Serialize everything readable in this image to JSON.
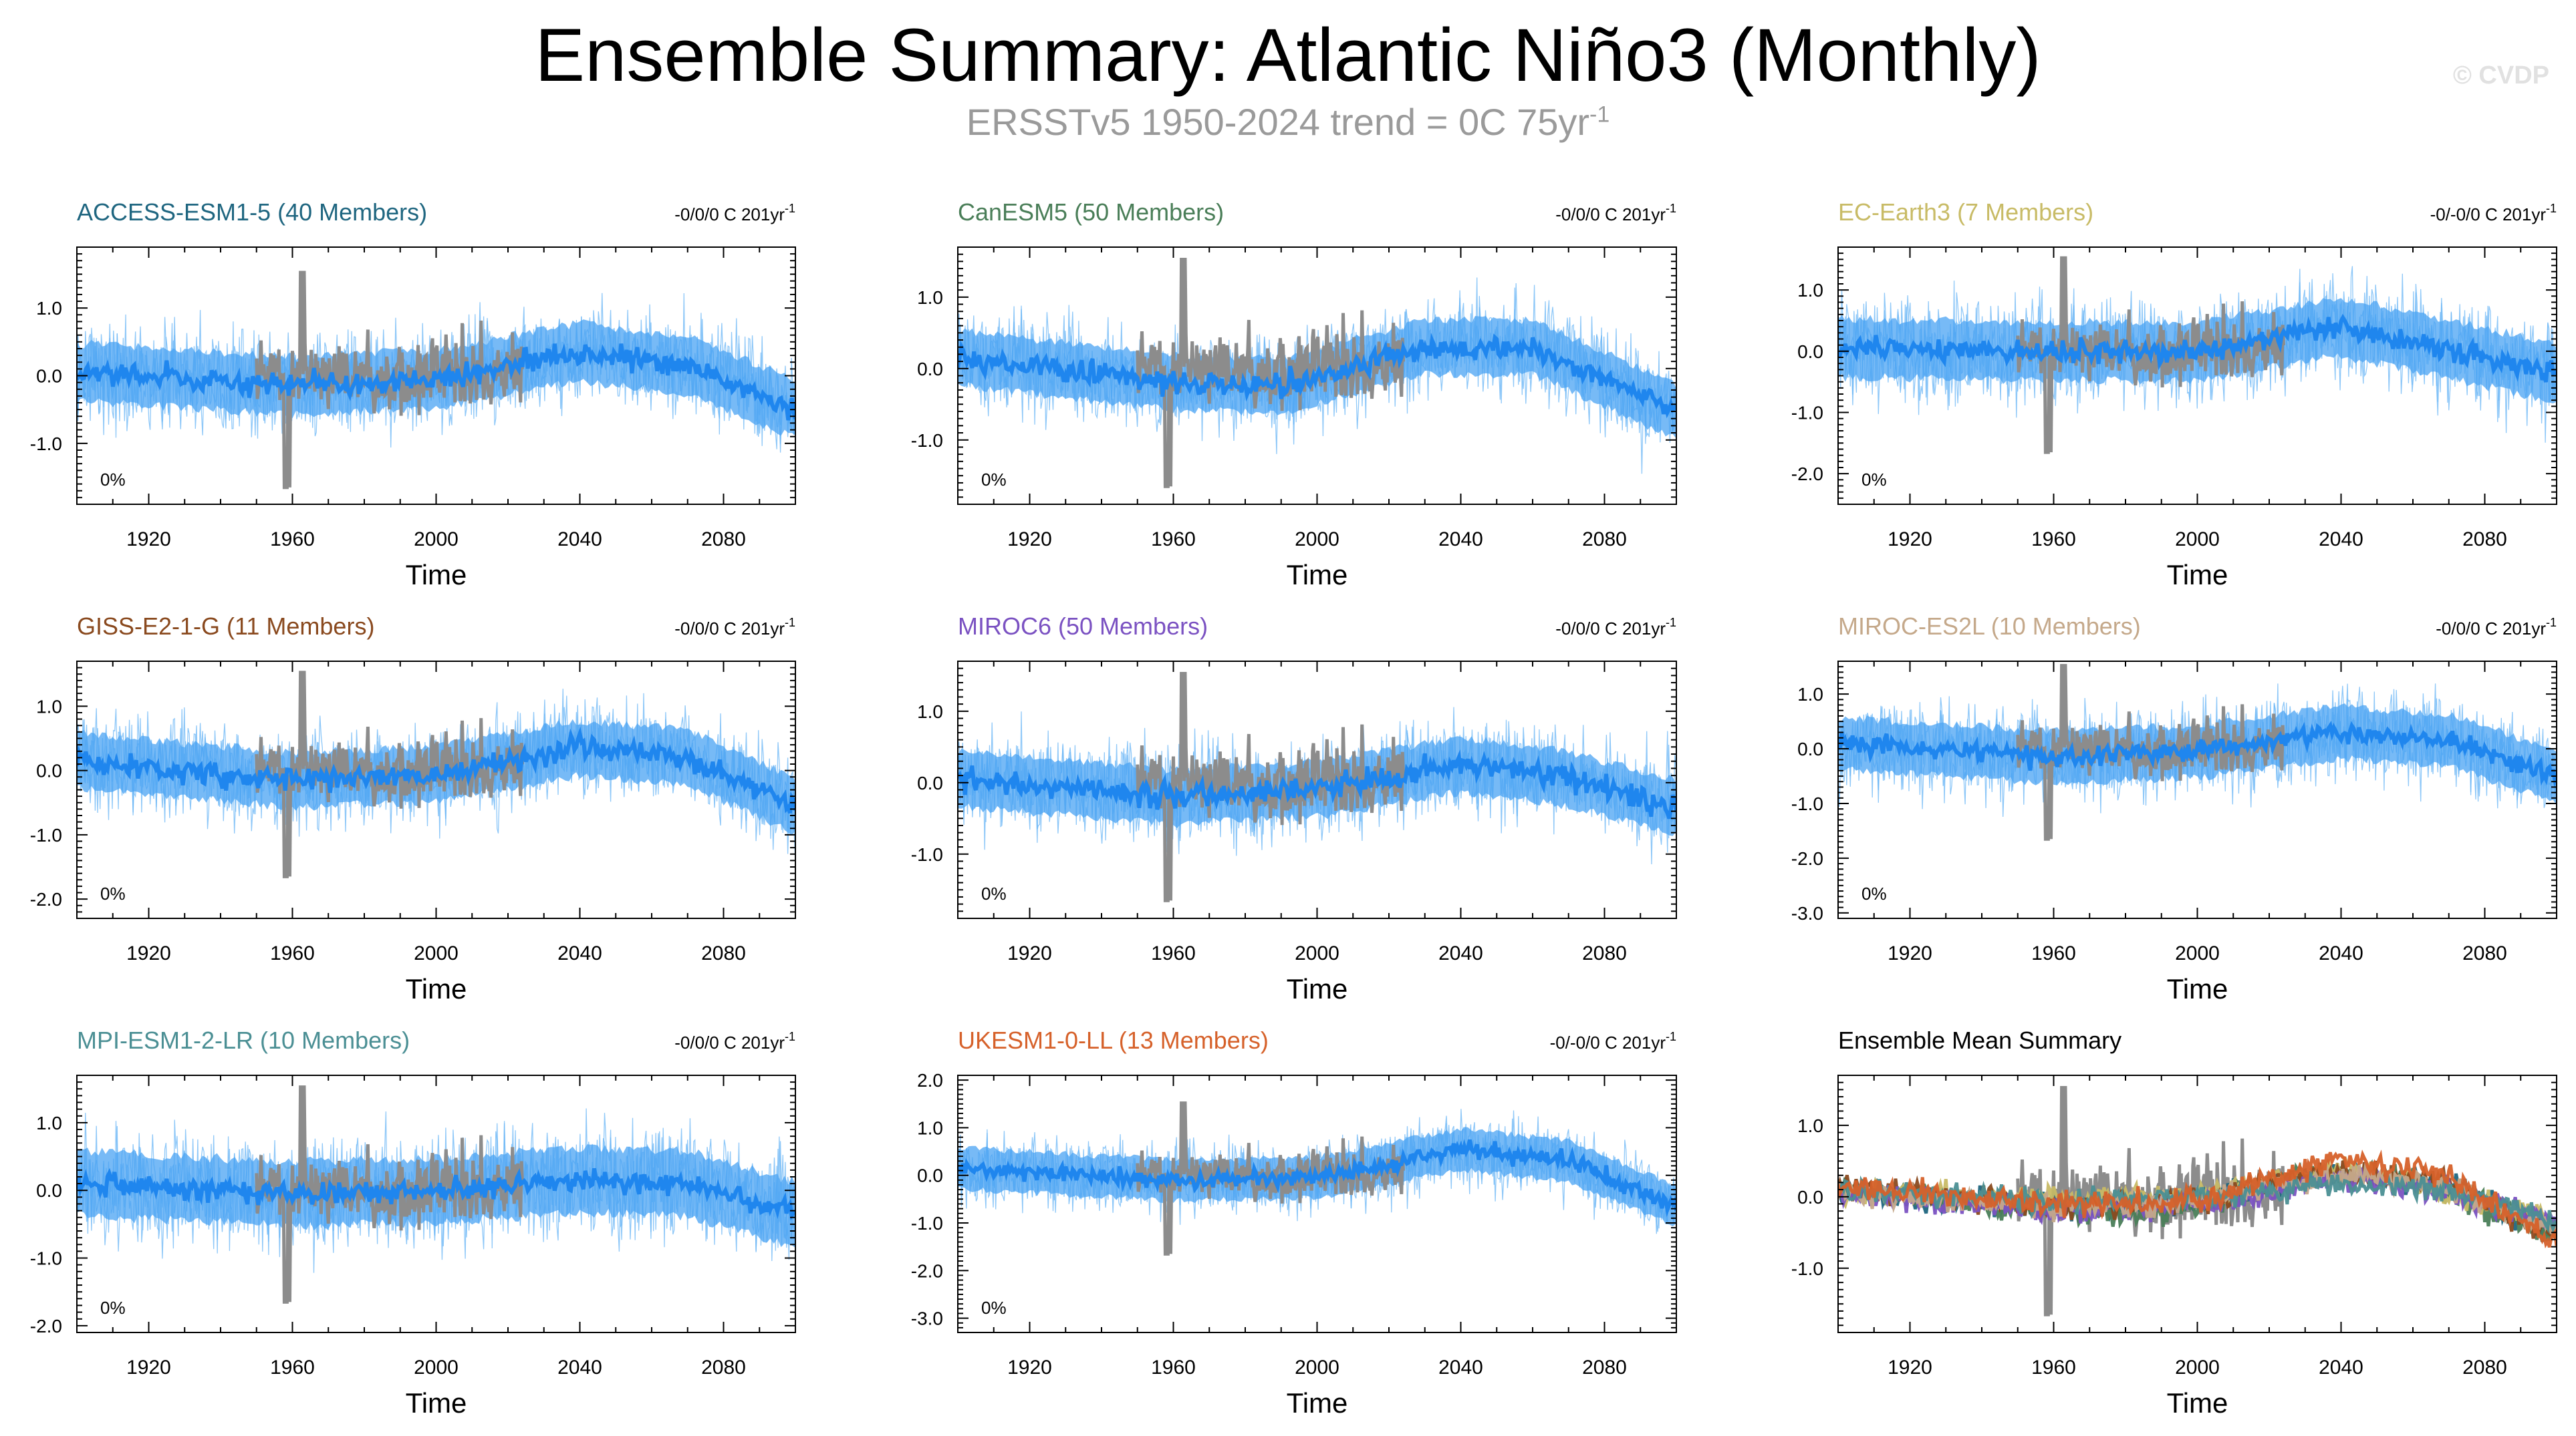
{
  "header": {
    "title": "Ensemble Summary: Atlantic Niño3 (Monthly)",
    "subtitle_main": "ERSSTv5 1950-2024 trend = 0C 75yr",
    "subtitle_sup": "-1",
    "watermark": "© CVDP"
  },
  "colors": {
    "observations": "#8c8c8c",
    "ensemble_mean": "#1f86ee",
    "members": "#69b6f6",
    "spread": "#4aa3f3"
  },
  "chart_data": [
    {
      "type": "line",
      "title": "ACCESS-ESM1-5 (40 Members)",
      "title_color": "#1f6680",
      "trend_text": "-0/0/0 C 201yr",
      "trend_sup": "-1",
      "percent_label": "0%",
      "xlabel": "Time",
      "xlim": [
        1900,
        2100
      ],
      "xticks": [
        1920,
        1960,
        2000,
        2040,
        2080
      ],
      "ylim": [
        -1.9,
        1.9
      ],
      "yticks": [
        1.0,
        0.0,
        -1.0
      ],
      "ytick_labels": [
        "1.0",
        "0.0",
        "-1.0"
      ],
      "ens_mean_shape": [
        [
          1900,
          0.05
        ],
        [
          1960,
          -0.15
        ],
        [
          2000,
          -0.05
        ],
        [
          2040,
          0.35
        ],
        [
          2070,
          0.15
        ],
        [
          2100,
          -0.5
        ]
      ],
      "spread": 0.45,
      "obs_range": [
        1950,
        2024
      ]
    },
    {
      "type": "line",
      "title": "CanESM5 (50 Members)",
      "title_color": "#4a7e58",
      "trend_text": "-0/0/0 C 201yr",
      "trend_sup": "-1",
      "percent_label": "0%",
      "xlabel": "Time",
      "xlim": [
        1900,
        2100
      ],
      "xticks": [
        1920,
        1960,
        2000,
        2040,
        2080
      ],
      "ylim": [
        -1.9,
        1.7
      ],
      "yticks": [
        1.0,
        0.0,
        -1.0
      ],
      "ytick_labels": [
        "1.0",
        "0.0",
        "-1.0"
      ],
      "ens_mean_shape": [
        [
          1900,
          0.15
        ],
        [
          1960,
          -0.2
        ],
        [
          1990,
          -0.25
        ],
        [
          2030,
          0.3
        ],
        [
          2060,
          0.3
        ],
        [
          2100,
          -0.6
        ]
      ],
      "spread": 0.4,
      "obs_range": [
        1950,
        2024
      ]
    },
    {
      "type": "line",
      "title": "EC-Earth3 (7 Members)",
      "title_color": "#c8bb66",
      "trend_text": "-0/-0/0 C 201yr",
      "trend_sup": "-1",
      "percent_label": "0%",
      "xlabel": "Time",
      "xlim": [
        1900,
        2100
      ],
      "xticks": [
        1920,
        1960,
        2000,
        2040,
        2080
      ],
      "ylim": [
        -2.5,
        1.7
      ],
      "yticks": [
        1.0,
        0.0,
        -1.0,
        -2.0
      ],
      "ytick_labels": [
        "1.0",
        "0.0",
        "-1.0",
        "-2.0"
      ],
      "ens_mean_shape": [
        [
          1900,
          0.05
        ],
        [
          1960,
          0.0
        ],
        [
          2000,
          0.0
        ],
        [
          2040,
          0.4
        ],
        [
          2100,
          -0.35
        ]
      ],
      "spread": 0.5,
      "obs_range": [
        1950,
        2024
      ]
    },
    {
      "type": "line",
      "title": "GISS-E2-1-G (11 Members)",
      "title_color": "#8a4a1f",
      "trend_text": "-0/0/0 C 201yr",
      "trend_sup": "-1",
      "percent_label": "0%",
      "xlabel": "Time",
      "xlim": [
        1900,
        2100
      ],
      "xticks": [
        1920,
        1960,
        2000,
        2040,
        2080
      ],
      "ylim": [
        -2.3,
        1.7
      ],
      "yticks": [
        1.0,
        0.0,
        -1.0,
        -2.0
      ],
      "ytick_labels": [
        "1.0",
        "0.0",
        "-1.0",
        "-2.0"
      ],
      "ens_mean_shape": [
        [
          1900,
          0.15
        ],
        [
          1960,
          -0.15
        ],
        [
          2000,
          -0.05
        ],
        [
          2040,
          0.35
        ],
        [
          2070,
          0.2
        ],
        [
          2100,
          -0.55
        ]
      ],
      "spread": 0.45,
      "obs_range": [
        1950,
        2024
      ]
    },
    {
      "type": "line",
      "title": "MIROC6 (50 Members)",
      "title_color": "#7b52c2",
      "trend_text": "-0/0/0 C 201yr",
      "trend_sup": "-1",
      "percent_label": "0%",
      "xlabel": "Time",
      "xlim": [
        1900,
        2100
      ],
      "xticks": [
        1920,
        1960,
        2000,
        2040,
        2080
      ],
      "ylim": [
        -1.9,
        1.7
      ],
      "yticks": [
        1.0,
        0.0,
        -1.0
      ],
      "ytick_labels": [
        "1.0",
        "0.0",
        "-1.0"
      ],
      "ens_mean_shape": [
        [
          1900,
          0.05
        ],
        [
          1960,
          -0.2
        ],
        [
          2000,
          -0.1
        ],
        [
          2040,
          0.25
        ],
        [
          2070,
          0.05
        ],
        [
          2100,
          -0.35
        ]
      ],
      "spread": 0.4,
      "obs_range": [
        1950,
        2024
      ]
    },
    {
      "type": "line",
      "title": "MIROC-ES2L (10 Members)",
      "title_color": "#c5a98b",
      "trend_text": "-0/0/0 C 201yr",
      "trend_sup": "-1",
      "percent_label": "0%",
      "xlabel": "Time",
      "xlim": [
        1900,
        2100
      ],
      "xticks": [
        1920,
        1960,
        2000,
        2040,
        2080
      ],
      "ylim": [
        -3.1,
        1.6
      ],
      "yticks": [
        1.0,
        0.0,
        -1.0,
        -2.0,
        -3.0
      ],
      "ytick_labels": [
        "1.0",
        "0.0",
        "-1.0",
        "-2.0",
        "-3.0"
      ],
      "ens_mean_shape": [
        [
          1900,
          0.1
        ],
        [
          1960,
          -0.15
        ],
        [
          2000,
          -0.05
        ],
        [
          2040,
          0.3
        ],
        [
          2070,
          0.15
        ],
        [
          2100,
          -0.5
        ]
      ],
      "spread": 0.5,
      "obs_range": [
        1950,
        2024
      ]
    },
    {
      "type": "line",
      "title": "MPI-ESM1-2-LR (10 Members)",
      "title_color": "#4b8f94",
      "trend_text": "-0/0/0 C 201yr",
      "trend_sup": "-1",
      "percent_label": "0%",
      "xlabel": "Time",
      "xlim": [
        1900,
        2100
      ],
      "xticks": [
        1920,
        1960,
        2000,
        2040,
        2080
      ],
      "ylim": [
        -2.1,
        1.7
      ],
      "yticks": [
        1.0,
        0.0,
        -1.0,
        -2.0
      ],
      "ytick_labels": [
        "1.0",
        "0.0",
        "-1.0",
        "-2.0"
      ],
      "ens_mean_shape": [
        [
          1900,
          0.1
        ],
        [
          1960,
          -0.05
        ],
        [
          2000,
          0.0
        ],
        [
          2040,
          0.15
        ],
        [
          2070,
          0.1
        ],
        [
          2100,
          -0.35
        ]
      ],
      "spread": 0.5,
      "obs_range": [
        1950,
        2024
      ]
    },
    {
      "type": "line",
      "title": "UKESM1-0-LL (13 Members)",
      "title_color": "#d6612a",
      "trend_text": "-0/-0/0 C 201yr",
      "trend_sup": "-1",
      "percent_label": "0%",
      "xlabel": "Time",
      "xlim": [
        1900,
        2100
      ],
      "xticks": [
        1920,
        1960,
        2000,
        2040,
        2080
      ],
      "ylim": [
        -3.3,
        2.1
      ],
      "yticks": [
        2.0,
        1.0,
        0.0,
        -1.0,
        -2.0,
        -3.0
      ],
      "ytick_labels": [
        "2.0",
        "1.0",
        "0.0",
        "-1.0",
        "-2.0",
        "-3.0"
      ],
      "ens_mean_shape": [
        [
          1900,
          0.15
        ],
        [
          1960,
          -0.1
        ],
        [
          2000,
          -0.05
        ],
        [
          2040,
          0.55
        ],
        [
          2070,
          0.3
        ],
        [
          2100,
          -0.65
        ]
      ],
      "spread": 0.45,
      "obs_range": [
        1950,
        2024
      ]
    },
    {
      "type": "line",
      "title": "Ensemble Mean Summary",
      "title_color": "#000000",
      "summary": true,
      "xlabel": "Time",
      "xlim": [
        1900,
        2100
      ],
      "xticks": [
        1920,
        1960,
        2000,
        2040,
        2080
      ],
      "ylim": [
        -1.9,
        1.7
      ],
      "yticks": [
        1.0,
        0.0,
        -1.0
      ],
      "ytick_labels": [
        "1.0",
        "0.0",
        "-1.0"
      ],
      "series": [
        {
          "name": "ACCESS-ESM1-5",
          "color": "#1f6680"
        },
        {
          "name": "CanESM5",
          "color": "#4a7e58"
        },
        {
          "name": "EC-Earth3",
          "color": "#c8bb66"
        },
        {
          "name": "GISS-E2-1-G",
          "color": "#8a4a1f"
        },
        {
          "name": "MIROC6",
          "color": "#7b52c2"
        },
        {
          "name": "MIROC-ES2L",
          "color": "#c5a98b"
        },
        {
          "name": "MPI-ESM1-2-LR",
          "color": "#4b8f94"
        },
        {
          "name": "UKESM1-0-LL",
          "color": "#d6612a"
        }
      ],
      "obs_range": [
        1950,
        2024
      ]
    }
  ]
}
